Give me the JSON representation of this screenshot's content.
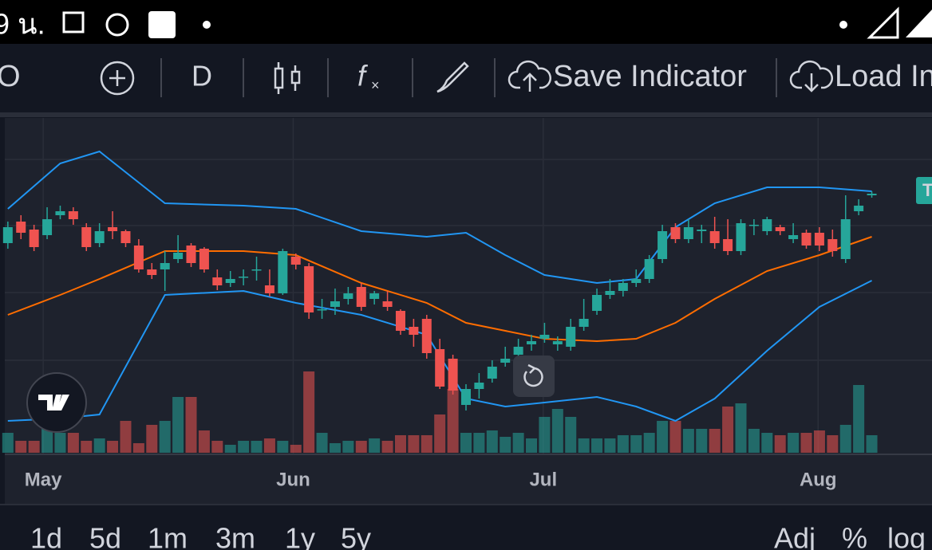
{
  "status_bar": {
    "time": "9 น."
  },
  "toolbar": {
    "symbol": "O",
    "interval": "D",
    "save": "Save Indicator",
    "load": "Load Indicator"
  },
  "price_tag": "T",
  "chart_data": {
    "type": "candlestick",
    "open": [
      295,
      322,
      312,
      305,
      330,
      335,
      315,
      295,
      315,
      310,
      292,
      262,
      262,
      275,
      292,
      288,
      252,
      245,
      252,
      262,
      242,
      232,
      278,
      266,
      212,
      215,
      225,
      240,
      225,
      222,
      210,
      190,
      200,
      162,
      150,
      92,
      112,
      125,
      145,
      155,
      168,
      175,
      168,
      165,
      190,
      210,
      230,
      235,
      245,
      250,
      275,
      315,
      300,
      310,
      310,
      300,
      285,
      318,
      310,
      315,
      300,
      308,
      308,
      300,
      275,
      335,
      355
    ],
    "high": [
      322,
      330,
      318,
      340,
      342,
      340,
      320,
      320,
      335,
      312,
      300,
      270,
      285,
      305,
      295,
      290,
      262,
      260,
      262,
      278,
      262,
      288,
      282,
      270,
      225,
      238,
      240,
      245,
      235,
      235,
      212,
      200,
      205,
      175,
      155,
      118,
      132,
      148,
      165,
      175,
      180,
      195,
      178,
      200,
      225,
      238,
      250,
      250,
      262,
      280,
      318,
      320,
      325,
      318,
      328,
      325,
      325,
      325,
      328,
      318,
      320,
      312,
      315,
      312,
      355,
      350,
      360
    ],
    "low": [
      288,
      300,
      285,
      300,
      325,
      318,
      285,
      290,
      300,
      290,
      258,
      250,
      235,
      270,
      265,
      258,
      236,
      240,
      242,
      248,
      228,
      230,
      262,
      200,
      200,
      205,
      218,
      210,
      218,
      210,
      180,
      165,
      150,
      112,
      105,
      85,
      100,
      120,
      140,
      150,
      160,
      170,
      160,
      160,
      185,
      205,
      225,
      228,
      240,
      245,
      270,
      295,
      295,
      295,
      288,
      280,
      280,
      305,
      305,
      305,
      295,
      288,
      285,
      278,
      270,
      330,
      352
    ],
    "close": [
      315,
      308,
      290,
      325,
      335,
      325,
      290,
      310,
      310,
      295,
      262,
      255,
      270,
      283,
      270,
      262,
      242,
      250,
      253,
      262,
      232,
      285,
      268,
      208,
      212,
      222,
      232,
      215,
      232,
      215,
      185,
      180,
      157,
      115,
      110,
      112,
      120,
      140,
      150,
      165,
      172,
      180,
      172,
      190,
      200,
      230,
      235,
      245,
      250,
      275,
      310,
      300,
      315,
      312,
      295,
      285,
      320,
      318,
      325,
      310,
      305,
      292,
      292,
      285,
      325,
      342,
      357
    ],
    "volume": [
      25,
      15,
      15,
      30,
      25,
      25,
      15,
      18,
      15,
      40,
      12,
      35,
      40,
      70,
      70,
      28,
      15,
      10,
      15,
      15,
      18,
      15,
      10,
      102,
      25,
      12,
      15,
      15,
      18,
      15,
      22,
      22,
      22,
      48,
      80,
      25,
      25,
      28,
      20,
      25,
      18,
      45,
      55,
      45,
      18,
      18,
      18,
      22,
      22,
      25,
      40,
      40,
      30,
      30,
      30,
      58,
      62,
      30,
      25,
      22,
      25,
      25,
      28,
      22,
      35,
      85,
      22
    ],
    "up_color": "#26a69a",
    "down_color": "#ef5350",
    "ylim": [
      32,
      450
    ],
    "y2lim": [
      0,
      418
    ],
    "xlim": [
      -0.6,
      70.6
    ],
    "xticks": [
      {
        "value": 2.7,
        "label": "May"
      },
      {
        "value": 21.8,
        "label": "Jun"
      },
      {
        "value": 40.9,
        "label": "Jul"
      },
      {
        "value": 61.9,
        "label": "Aug"
      }
    ],
    "bands": {
      "x": [
        0,
        4,
        7,
        12,
        18,
        22,
        27,
        32,
        35,
        38,
        41,
        45,
        48,
        51,
        54,
        58,
        62,
        66
      ],
      "series": [
        {
          "color": "#2196f3",
          "values": [
            338,
            395,
            410,
            345,
            342,
            338,
            310,
            303,
            308,
            280,
            255,
            245,
            250,
            315,
            345,
            365,
            365,
            360
          ]
        },
        {
          "color": "#ff6d00",
          "values": [
            205,
            230,
            250,
            285,
            285,
            280,
            245,
            220,
            195,
            185,
            175,
            172,
            175,
            195,
            225,
            260,
            280,
            303
          ]
        },
        {
          "color": "#2196f3",
          "values": [
            72,
            75,
            80,
            230,
            235,
            220,
            205,
            180,
            100,
            90,
            95,
            102,
            90,
            72,
            100,
            160,
            215,
            248
          ]
        }
      ]
    }
  },
  "range_buttons": [
    "1d",
    "5d",
    "1m",
    "3m",
    "1y",
    "5y"
  ],
  "options": [
    "Adj",
    "%",
    "log"
  ]
}
